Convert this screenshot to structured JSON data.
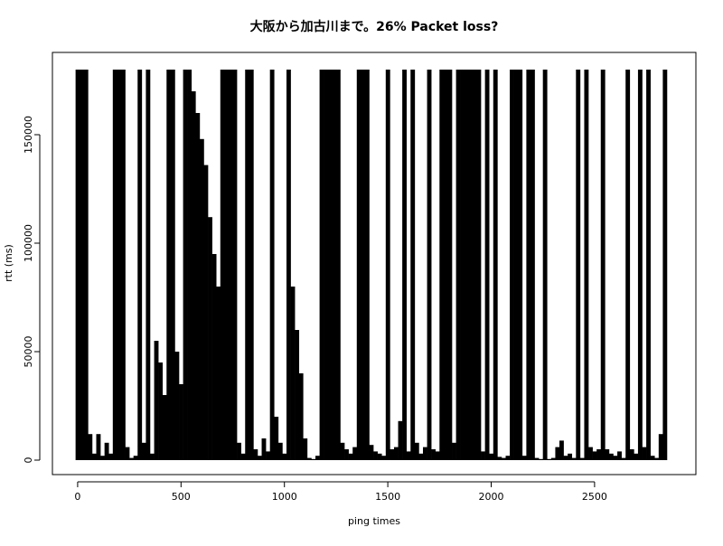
{
  "chart_data": {
    "type": "bar",
    "title": "大阪から加古川まで。26% Packet loss?",
    "x_label": "ping times",
    "y_label": "rtt (ms)",
    "color": "#000000",
    "xlim": [
      -122,
      2990
    ],
    "ylim": [
      -6667,
      187917
    ],
    "xticks": [
      0,
      500,
      1000,
      1500,
      2000,
      2500
    ],
    "yticks": [
      0,
      50000,
      100000,
      150000
    ],
    "x": [
      0,
      20,
      40,
      60,
      80,
      100,
      120,
      140,
      160,
      180,
      200,
      220,
      240,
      260,
      280,
      300,
      320,
      340,
      360,
      380,
      400,
      420,
      440,
      460,
      480,
      500,
      520,
      540,
      560,
      580,
      600,
      620,
      640,
      660,
      680,
      700,
      720,
      740,
      760,
      780,
      800,
      820,
      840,
      860,
      880,
      900,
      920,
      940,
      960,
      980,
      1000,
      1020,
      1040,
      1060,
      1080,
      1100,
      1120,
      1140,
      1160,
      1180,
      1200,
      1220,
      1240,
      1260,
      1280,
      1300,
      1320,
      1340,
      1360,
      1380,
      1400,
      1420,
      1440,
      1460,
      1480,
      1500,
      1520,
      1540,
      1560,
      1580,
      1600,
      1620,
      1640,
      1660,
      1680,
      1700,
      1720,
      1740,
      1760,
      1780,
      1800,
      1820,
      1840,
      1860,
      1880,
      1900,
      1920,
      1940,
      1960,
      1980,
      2000,
      2020,
      2040,
      2060,
      2080,
      2100,
      2120,
      2140,
      2160,
      2180,
      2200,
      2220,
      2240,
      2260,
      2280,
      2300,
      2320,
      2340,
      2360,
      2380,
      2400,
      2420,
      2440,
      2460,
      2480,
      2500,
      2520,
      2540,
      2560,
      2580,
      2600,
      2620,
      2640,
      2660,
      2680,
      2700,
      2720,
      2740,
      2760,
      2780,
      2800,
      2820,
      2840
    ],
    "values": [
      180000,
      180000,
      180000,
      12000,
      3000,
      12000,
      2000,
      8000,
      3000,
      180000,
      180000,
      180000,
      6000,
      1000,
      2000,
      180000,
      8000,
      180000,
      3000,
      55000,
      45000,
      30000,
      180000,
      180000,
      50000,
      35000,
      180000,
      180000,
      170000,
      160000,
      148000,
      136000,
      112000,
      95000,
      80000,
      180000,
      180000,
      180000,
      180000,
      8000,
      3000,
      180000,
      180000,
      5000,
      2000,
      10000,
      4000,
      180000,
      20000,
      8000,
      3000,
      180000,
      80000,
      60000,
      40000,
      10000,
      1000,
      500,
      2000,
      180000,
      180000,
      180000,
      180000,
      180000,
      8000,
      5000,
      3000,
      6000,
      180000,
      180000,
      180000,
      7000,
      4000,
      3000,
      2000,
      180000,
      5000,
      6000,
      18000,
      180000,
      4000,
      180000,
      8000,
      3000,
      6000,
      180000,
      5000,
      4000,
      180000,
      180000,
      180000,
      8000,
      180000,
      180000,
      180000,
      180000,
      180000,
      180000,
      4000,
      180000,
      3000,
      180000,
      1500,
      1000,
      2000,
      180000,
      180000,
      180000,
      2000,
      180000,
      180000,
      1000,
      500,
      180000,
      500,
      1000,
      6000,
      9000,
      2000,
      3000,
      1000,
      180000,
      1000,
      180000,
      6000,
      4000,
      5000,
      180000,
      5000,
      3000,
      2000,
      4000,
      1000,
      180000,
      5000,
      3000,
      180000,
      6000,
      180000,
      2000,
      1000,
      12000,
      180000
    ]
  }
}
